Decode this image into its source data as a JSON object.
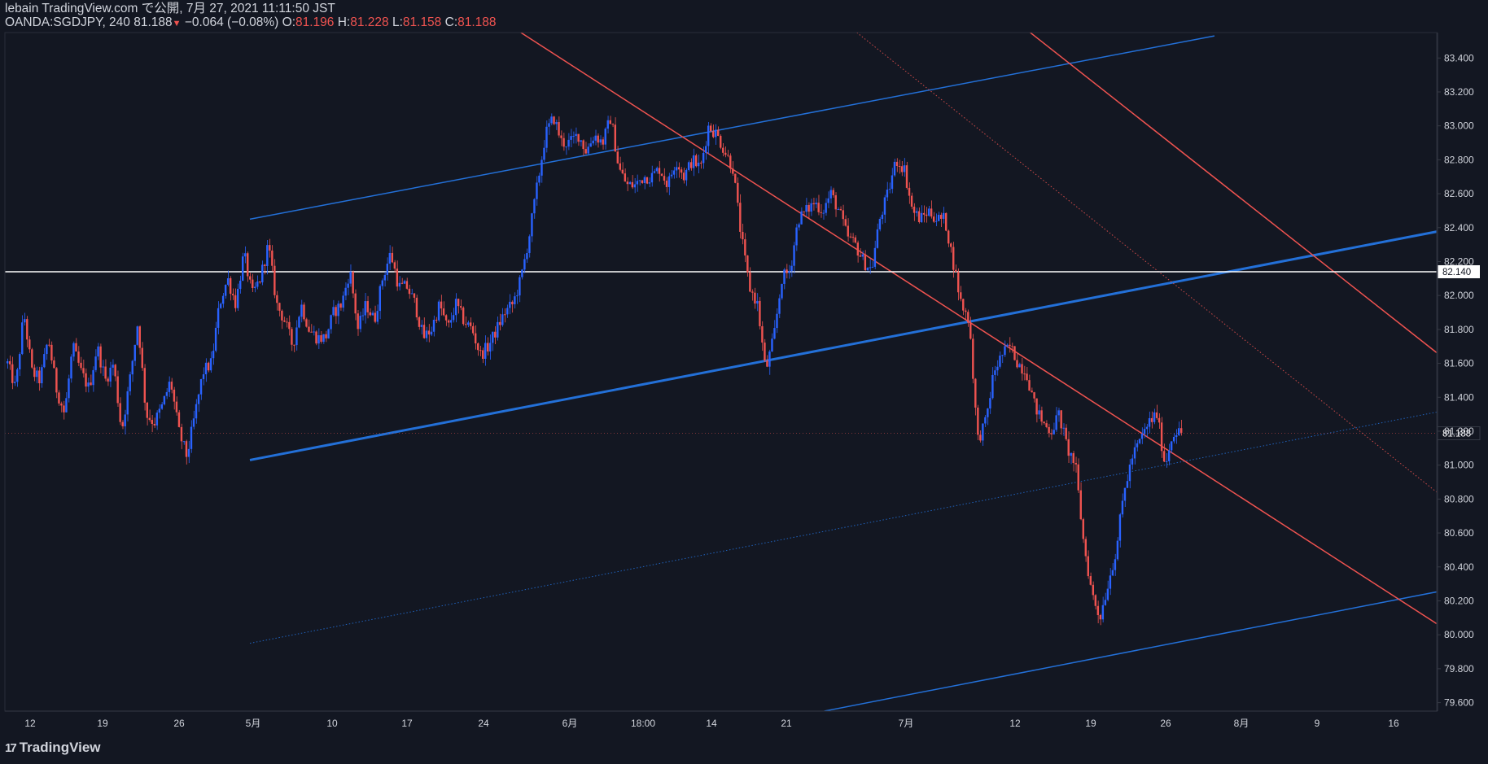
{
  "header": {
    "publish_line": "lebain TradingView.com で公開, 7月 27, 2021 11:11:50 JST",
    "symbol": "OANDA:SGDJPY, 240 81.188",
    "change_arrow": "▼",
    "change": "−0.064 (−0.08%)",
    "o_label": " O:",
    "o_value": "81.196",
    "h_label": " H:",
    "h_value": "81.228",
    "l_label": " L:",
    "l_value": "81.158",
    "c_label": " C:",
    "c_value": "81.188"
  },
  "footer": {
    "logo_text": "TradingView",
    "logo_icon": "tradingview-logo-icon"
  },
  "chart_data": {
    "type": "candlestick",
    "symbol": "OANDA:SGDJPY",
    "interval": "240",
    "colors": {
      "background": "#131722",
      "up": "#2962ff",
      "down": "#ef5350",
      "blue_line": "#2370d8",
      "red_line": "#ef5350",
      "level_line": "#ffffff",
      "text": "#d1d4dc"
    },
    "ylim": [
      79.55,
      83.55
    ],
    "y_ticks": [
      "83.400",
      "83.200",
      "83.000",
      "82.800",
      "82.600",
      "82.400",
      "82.200",
      "82.000",
      "81.800",
      "81.600",
      "81.400",
      "81.200",
      "81.000",
      "80.800",
      "80.600",
      "80.400",
      "80.200",
      "80.000",
      "79.800",
      "79.600"
    ],
    "x_ticks": [
      "12",
      "19",
      "26",
      "5月",
      "10",
      "17",
      "24",
      "6月",
      "18:00",
      "14",
      "21",
      "7月",
      "12",
      "19",
      "26",
      "8月",
      "9",
      "16"
    ],
    "current_price": "81.188",
    "horizontal_level": "82.140",
    "price_path": [
      81.6,
      81.45,
      81.9,
      81.55,
      81.5,
      81.75,
      81.45,
      81.3,
      81.7,
      81.55,
      81.45,
      81.7,
      81.5,
      81.6,
      81.2,
      81.5,
      81.85,
      81.3,
      81.25,
      81.35,
      81.5,
      81.2,
      81.05,
      81.3,
      81.55,
      81.6,
      81.95,
      82.1,
      81.95,
      82.25,
      82.0,
      82.1,
      82.3,
      81.95,
      81.85,
      81.7,
      81.95,
      81.8,
      81.75,
      81.75,
      81.9,
      81.95,
      82.15,
      81.8,
      81.95,
      81.85,
      82.1,
      82.25,
      82.05,
      82.05,
      81.95,
      81.75,
      81.8,
      81.95,
      81.8,
      81.95,
      81.85,
      81.8,
      81.65,
      81.7,
      81.8,
      81.9,
      81.95,
      82.1,
      82.35,
      82.65,
      82.95,
      83.05,
      82.9,
      82.9,
      82.95,
      82.85,
      82.95,
      82.9,
      83.05,
      82.75,
      82.65,
      82.65,
      82.7,
      82.7,
      82.75,
      82.65,
      82.8,
      82.7,
      82.8,
      82.75,
      83.0,
      82.95,
      82.85,
      82.75,
      82.35,
      82.05,
      81.95,
      81.55,
      81.75,
      82.1,
      82.15,
      82.45,
      82.5,
      82.55,
      82.5,
      82.6,
      82.5,
      82.35,
      82.3,
      82.2,
      82.15,
      82.45,
      82.6,
      82.8,
      82.75,
      82.5,
      82.45,
      82.5,
      82.45,
      82.45,
      82.2,
      81.95,
      81.85,
      81.15,
      81.25,
      81.55,
      81.65,
      81.7,
      81.6,
      81.55,
      81.35,
      81.25,
      81.2,
      81.3,
      81.1,
      81.0,
      80.55,
      80.25,
      80.1,
      80.3,
      80.5,
      80.85,
      81.05,
      81.15,
      81.25,
      81.3,
      81.0,
      81.2,
      81.19
    ],
    "trend_lines": [
      {
        "color": "blue",
        "style": "solid",
        "width": "thick",
        "from": {
          "date": "2021-04-05",
          "price": 81.03
        },
        "to": {
          "date": "2021-08-18",
          "price": 82.69
        }
      },
      {
        "color": "blue",
        "style": "solid",
        "width": "thin",
        "from": {
          "date": "2021-04-05",
          "price": 82.45
        },
        "to": {
          "date": "2021-07-03",
          "price": 83.53
        }
      },
      {
        "color": "blue",
        "style": "solid",
        "width": "thin",
        "from": {
          "date": "2021-05-28",
          "price": 79.55
        },
        "to": {
          "date": "2021-08-18",
          "price": 80.57
        }
      },
      {
        "color": "blue",
        "style": "dotted",
        "width": "thin",
        "from": {
          "date": "2021-04-05",
          "price": 79.95
        },
        "to": {
          "date": "2021-08-18",
          "price": 81.63
        }
      },
      {
        "color": "red",
        "style": "solid",
        "width": "thin",
        "from": {
          "date": "2021-04-30",
          "price": 83.55
        },
        "to": {
          "date": "2021-08-05",
          "price": 79.55
        }
      },
      {
        "color": "red",
        "style": "solid",
        "width": "thin",
        "from": {
          "date": "2021-06-16",
          "price": 83.55
        },
        "to": {
          "date": "2021-08-18",
          "price": 80.38
        }
      },
      {
        "color": "red",
        "style": "dotted",
        "width": "thin",
        "from": {
          "date": "2021-05-31",
          "price": 83.55
        },
        "to": {
          "date": "2021-08-18",
          "price": 79.55
        }
      }
    ]
  }
}
